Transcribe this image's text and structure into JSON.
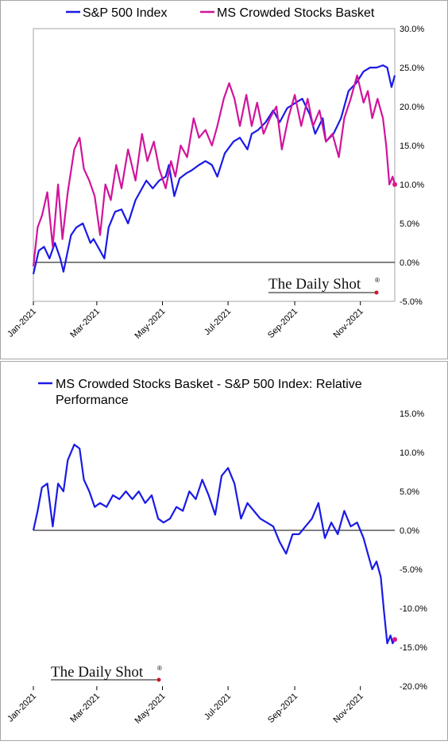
{
  "colors": {
    "sp500": "#1a1ae6",
    "crowded": "#d1149b",
    "relative": "#1a1ae6",
    "marker": "#e0148c",
    "axis": "#000000",
    "frame": "#a6a6a6"
  },
  "brand": {
    "text": "The Daily Shot",
    "mark": "®"
  },
  "chart_data": [
    {
      "type": "line",
      "title": "",
      "legend_position": "top",
      "y_range": [
        -5,
        30
      ],
      "y_ticks": [
        "30.0%",
        "25.0%",
        "20.0%",
        "15.0%",
        "10.0%",
        "5.0%",
        "0.0%",
        "-5.0%"
      ],
      "x_ticks": [
        "Jan-2021",
        "Mar-2021",
        "May-2021",
        "Jul-2021",
        "Sep-2021",
        "Nov-2021"
      ],
      "x_range": [
        "2021-01-01",
        "2021-12-03"
      ],
      "grid": false,
      "series": [
        {
          "name": "S&P 500 Index",
          "color": "#1a1ae6",
          "x": [
            "2021-01-01",
            "2021-01-06",
            "2021-01-11",
            "2021-01-16",
            "2021-01-21",
            "2021-01-26",
            "2021-01-29",
            "2021-02-05",
            "2021-02-10",
            "2021-02-16",
            "2021-02-23",
            "2021-02-26",
            "2021-03-04",
            "2021-03-08",
            "2021-03-12",
            "2021-03-18",
            "2021-03-24",
            "2021-03-30",
            "2021-04-06",
            "2021-04-12",
            "2021-04-16",
            "2021-04-22",
            "2021-04-28",
            "2021-05-04",
            "2021-05-07",
            "2021-05-12",
            "2021-05-17",
            "2021-05-24",
            "2021-05-28",
            "2021-06-04",
            "2021-06-10",
            "2021-06-16",
            "2021-06-21",
            "2021-06-28",
            "2021-07-06",
            "2021-07-12",
            "2021-07-19",
            "2021-07-23",
            "2021-07-29",
            "2021-08-05",
            "2021-08-12",
            "2021-08-18",
            "2021-08-25",
            "2021-09-02",
            "2021-09-08",
            "2021-09-15",
            "2021-09-20",
            "2021-09-27",
            "2021-09-30",
            "2021-10-07",
            "2021-10-14",
            "2021-10-21",
            "2021-10-28",
            "2021-11-04",
            "2021-11-10",
            "2021-11-16",
            "2021-11-22",
            "2021-11-26",
            "2021-11-30",
            "2021-12-03"
          ],
          "values": [
            -1.5,
            1.5,
            2.0,
            0.5,
            2.5,
            0.5,
            -1.2,
            3.5,
            4.5,
            5.0,
            2.5,
            3.0,
            1.5,
            0.5,
            4.5,
            6.5,
            6.8,
            5.0,
            8.0,
            9.5,
            10.5,
            9.5,
            10.5,
            11.0,
            12.5,
            8.5,
            10.8,
            11.5,
            11.8,
            12.5,
            13.0,
            12.5,
            11.0,
            14.0,
            15.5,
            16.0,
            14.5,
            16.5,
            17.0,
            18.0,
            19.5,
            18.0,
            19.8,
            20.5,
            21.0,
            19.0,
            16.5,
            18.5,
            15.5,
            16.5,
            18.5,
            22.0,
            23.0,
            24.5,
            25.0,
            25.0,
            25.3,
            25.0,
            22.5,
            24.0
          ]
        },
        {
          "name": "MS Crowded Stocks Basket",
          "color": "#d1149b",
          "x": [
            "2021-01-01",
            "2021-01-05",
            "2021-01-09",
            "2021-01-14",
            "2021-01-19",
            "2021-01-24",
            "2021-01-28",
            "2021-02-02",
            "2021-02-08",
            "2021-02-13",
            "2021-02-17",
            "2021-02-22",
            "2021-02-27",
            "2021-03-04",
            "2021-03-09",
            "2021-03-14",
            "2021-03-19",
            "2021-03-24",
            "2021-03-30",
            "2021-04-06",
            "2021-04-12",
            "2021-04-17",
            "2021-04-23",
            "2021-04-28",
            "2021-05-04",
            "2021-05-09",
            "2021-05-13",
            "2021-05-18",
            "2021-05-24",
            "2021-05-30",
            "2021-06-04",
            "2021-06-10",
            "2021-06-16",
            "2021-06-21",
            "2021-06-27",
            "2021-07-02",
            "2021-07-07",
            "2021-07-12",
            "2021-07-18",
            "2021-07-23",
            "2021-07-28",
            "2021-08-03",
            "2021-08-09",
            "2021-08-15",
            "2021-08-20",
            "2021-08-26",
            "2021-09-01",
            "2021-09-07",
            "2021-09-13",
            "2021-09-18",
            "2021-09-24",
            "2021-09-30",
            "2021-10-06",
            "2021-10-12",
            "2021-10-17",
            "2021-10-23",
            "2021-10-29",
            "2021-11-04",
            "2021-11-08",
            "2021-11-12",
            "2021-11-17",
            "2021-11-22",
            "2021-11-25",
            "2021-11-28",
            "2021-12-01",
            "2021-12-03"
          ],
          "values": [
            -0.5,
            4.5,
            6.0,
            9.0,
            2.0,
            10.0,
            3.0,
            9.0,
            14.5,
            16.0,
            12.0,
            10.5,
            8.5,
            3.5,
            10.0,
            8.0,
            12.5,
            9.5,
            14.5,
            10.5,
            16.5,
            13.0,
            15.5,
            12.0,
            9.5,
            13.0,
            11.0,
            15.0,
            13.5,
            18.5,
            16.0,
            17.0,
            15.0,
            17.5,
            21.0,
            23.0,
            21.0,
            17.5,
            21.5,
            17.5,
            20.5,
            16.5,
            18.5,
            20.0,
            14.5,
            18.5,
            21.5,
            17.5,
            21.0,
            17.5,
            19.5,
            15.5,
            16.5,
            13.5,
            18.5,
            21.0,
            24.0,
            20.5,
            22.0,
            18.5,
            21.0,
            18.5,
            15.0,
            10.0,
            11.0,
            10.0
          ]
        }
      ]
    },
    {
      "type": "line",
      "title": "",
      "legend_position": "top",
      "y_range": [
        -20,
        15
      ],
      "y_ticks": [
        "15.0%",
        "10.0%",
        "5.0%",
        "0.0%",
        "-5.0%",
        "-10.0%",
        "-15.0%",
        "-20.0%"
      ],
      "x_ticks": [
        "Jan-2021",
        "Mar-2021",
        "May-2021",
        "Jul-2021",
        "Sep-2021",
        "Nov-2021"
      ],
      "x_range": [
        "2021-01-01",
        "2021-12-03"
      ],
      "grid": false,
      "series": [
        {
          "name": "MS Crowded Stocks Basket - S&P 500 Index:   Relative Performance",
          "color": "#1a1ae6",
          "x": [
            "2021-01-01",
            "2021-01-05",
            "2021-01-09",
            "2021-01-14",
            "2021-01-19",
            "2021-01-24",
            "2021-01-29",
            "2021-02-02",
            "2021-02-08",
            "2021-02-13",
            "2021-02-17",
            "2021-02-22",
            "2021-02-27",
            "2021-03-04",
            "2021-03-10",
            "2021-03-16",
            "2021-03-22",
            "2021-03-28",
            "2021-04-03",
            "2021-04-09",
            "2021-04-15",
            "2021-04-21",
            "2021-04-27",
            "2021-05-02",
            "2021-05-08",
            "2021-05-14",
            "2021-05-20",
            "2021-05-26",
            "2021-06-01",
            "2021-06-07",
            "2021-06-13",
            "2021-06-19",
            "2021-06-25",
            "2021-07-01",
            "2021-07-07",
            "2021-07-13",
            "2021-07-19",
            "2021-07-25",
            "2021-07-31",
            "2021-08-06",
            "2021-08-12",
            "2021-08-18",
            "2021-08-24",
            "2021-08-30",
            "2021-09-05",
            "2021-09-11",
            "2021-09-17",
            "2021-09-23",
            "2021-09-29",
            "2021-10-05",
            "2021-10-11",
            "2021-10-17",
            "2021-10-23",
            "2021-10-29",
            "2021-11-04",
            "2021-11-08",
            "2021-11-12",
            "2021-11-16",
            "2021-11-20",
            "2021-11-23",
            "2021-11-26",
            "2021-11-29",
            "2021-12-01",
            "2021-12-03"
          ],
          "values": [
            0.0,
            2.5,
            5.5,
            6.0,
            0.5,
            6.0,
            5.0,
            9.0,
            11.0,
            10.5,
            6.5,
            5.0,
            3.0,
            3.5,
            3.0,
            4.5,
            4.0,
            5.0,
            4.0,
            5.0,
            3.5,
            4.5,
            1.5,
            1.0,
            1.5,
            3.0,
            2.5,
            5.0,
            4.0,
            6.5,
            4.5,
            2.0,
            7.0,
            8.0,
            6.0,
            1.5,
            3.5,
            2.5,
            1.5,
            1.0,
            0.5,
            -1.5,
            -3.0,
            -0.5,
            -0.5,
            0.5,
            1.5,
            3.5,
            -1.0,
            1.0,
            -0.5,
            2.5,
            0.5,
            1.0,
            -1.0,
            -3.0,
            -5.0,
            -4.0,
            -6.0,
            -10.5,
            -14.5,
            -13.5,
            -14.5,
            -14.0
          ]
        }
      ]
    }
  ]
}
